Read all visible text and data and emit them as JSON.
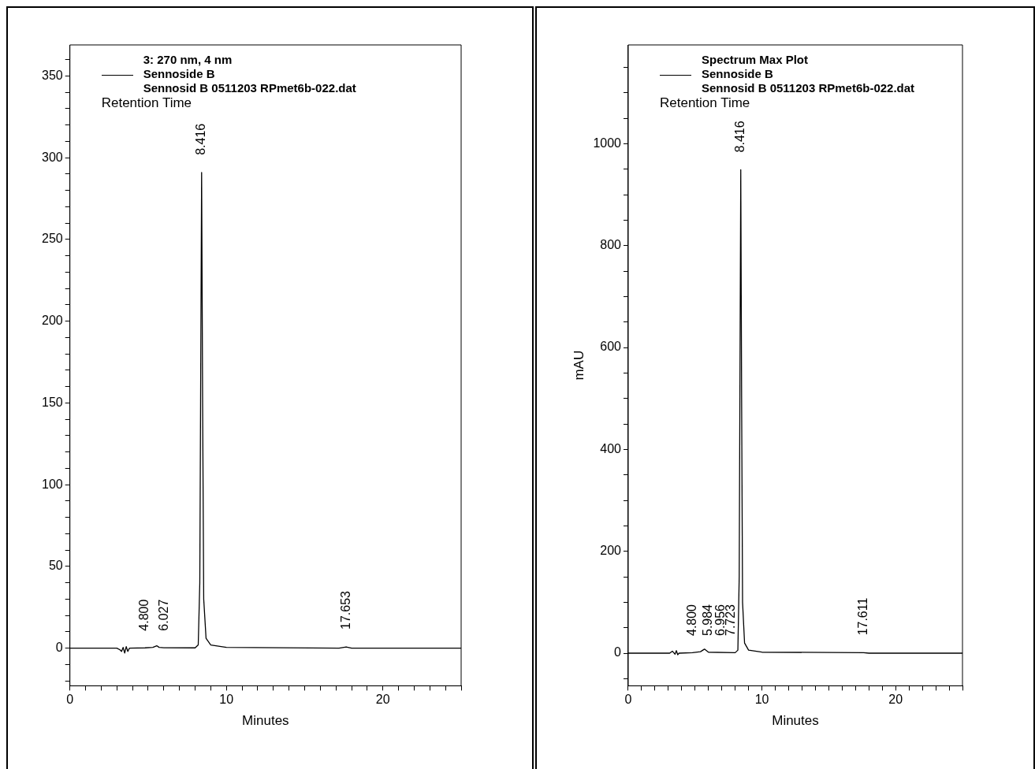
{
  "chart_data": [
    {
      "type": "line",
      "legend_title": "3: 270 nm, 4 nm",
      "xlabel": "Minutes",
      "legend": "top left",
      "grid": false,
      "marker": "none",
      "line_style": "solid",
      "xlim": [
        0,
        25
      ],
      "ylim": [
        -23,
        369
      ],
      "xticks": [
        0,
        {
          "value": 1,
          "label": null
        },
        {
          "value": 2,
          "label": null
        },
        {
          "value": 3,
          "label": null
        },
        {
          "value": 4,
          "label": null
        },
        {
          "value": 5,
          "label": null
        },
        {
          "value": 6,
          "label": null
        },
        {
          "value": 7,
          "label": null
        },
        {
          "value": 8,
          "label": null
        },
        {
          "value": 9,
          "label": null
        },
        10,
        {
          "value": 11,
          "label": null
        },
        {
          "value": 12,
          "label": null
        },
        {
          "value": 13,
          "label": null
        },
        {
          "value": 14,
          "label": null
        },
        {
          "value": 15,
          "label": null
        },
        {
          "value": 16,
          "label": null
        },
        {
          "value": 17,
          "label": null
        },
        {
          "value": 18,
          "label": null
        },
        {
          "value": 19,
          "label": null
        },
        20,
        {
          "value": 21,
          "label": null
        },
        {
          "value": 22,
          "label": null
        },
        {
          "value": 23,
          "label": null
        },
        {
          "value": 24,
          "label": null
        },
        {
          "value": 25,
          "label": null
        }
      ],
      "yticks": [
        {
          "value": -20,
          "label": null
        },
        {
          "value": -10,
          "label": null
        },
        0,
        {
          "value": 10,
          "label": null
        },
        {
          "value": 20,
          "label": null
        },
        {
          "value": 30,
          "label": null
        },
        {
          "value": 40,
          "label": null
        },
        50,
        {
          "value": 60,
          "label": null
        },
        {
          "value": 70,
          "label": null
        },
        {
          "value": 80,
          "label": null
        },
        {
          "value": 90,
          "label": null
        },
        100,
        {
          "value": 110,
          "label": null
        },
        {
          "value": 120,
          "label": null
        },
        {
          "value": 130,
          "label": null
        },
        {
          "value": 140,
          "label": null
        },
        150,
        {
          "value": 160,
          "label": null
        },
        {
          "value": 170,
          "label": null
        },
        {
          "value": 180,
          "label": null
        },
        {
          "value": 190,
          "label": null
        },
        200,
        {
          "value": 210,
          "label": null
        },
        {
          "value": 220,
          "label": null
        },
        {
          "value": 230,
          "label": null
        },
        {
          "value": 240,
          "label": null
        },
        250,
        {
          "value": 260,
          "label": null
        },
        {
          "value": 270,
          "label": null
        },
        {
          "value": 280,
          "label": null
        },
        {
          "value": 290,
          "label": null
        },
        300,
        {
          "value": 310,
          "label": null
        },
        {
          "value": 320,
          "label": null
        },
        {
          "value": 330,
          "label": null
        },
        {
          "value": 340,
          "label": null
        },
        350,
        {
          "value": 360,
          "label": null
        }
      ],
      "series": [
        {
          "name": "Sennoside B",
          "color": "#000000",
          "x": [
            0,
            3.0,
            3.2,
            3.3,
            3.4,
            3.5,
            3.6,
            3.7,
            3.8,
            4.8,
            5.3,
            5.55,
            5.7,
            6.0,
            8.0,
            8.2,
            8.3,
            8.35,
            8.416,
            8.48,
            8.55,
            8.7,
            9.0,
            10,
            17.2,
            17.653,
            18,
            25
          ],
          "values": [
            0,
            0,
            -1,
            -2,
            0.5,
            -3,
            1,
            -2,
            0,
            0.2,
            0.5,
            1.5,
            0.5,
            0.3,
            0.2,
            2,
            40,
            150,
            291,
            150,
            30,
            6,
            2,
            0.5,
            0,
            0.8,
            0,
            0
          ]
        }
      ],
      "annotations": [
        "Sennosid B 0511203 RPmet6b-022.dat",
        "Retention Time",
        {
          "text": "4.800",
          "x": 4.8,
          "y": 0
        },
        {
          "text": "6.027",
          "x": 6.027,
          "y": 0
        },
        {
          "text": "8.416",
          "x": 8.416,
          "y": 291
        },
        {
          "text": "17.653",
          "x": 17.653,
          "y": 0.8
        }
      ]
    },
    {
      "type": "line",
      "legend_title": "Spectrum Max Plot",
      "xlabel": "Minutes",
      "ylabel": "mAU",
      "legend": "top left",
      "grid": false,
      "marker": "none",
      "line_style": "solid",
      "xlim": [
        0,
        25
      ],
      "ylim": [
        -64,
        1194
      ],
      "xticks": [
        0,
        {
          "value": 1,
          "label": null
        },
        {
          "value": 2,
          "label": null
        },
        {
          "value": 3,
          "label": null
        },
        {
          "value": 4,
          "label": null
        },
        {
          "value": 5,
          "label": null
        },
        {
          "value": 6,
          "label": null
        },
        {
          "value": 7,
          "label": null
        },
        {
          "value": 8,
          "label": null
        },
        {
          "value": 9,
          "label": null
        },
        10,
        {
          "value": 11,
          "label": null
        },
        {
          "value": 12,
          "label": null
        },
        {
          "value": 13,
          "label": null
        },
        {
          "value": 14,
          "label": null
        },
        {
          "value": 15,
          "label": null
        },
        {
          "value": 16,
          "label": null
        },
        {
          "value": 17,
          "label": null
        },
        {
          "value": 18,
          "label": null
        },
        {
          "value": 19,
          "label": null
        },
        20,
        {
          "value": 21,
          "label": null
        },
        {
          "value": 22,
          "label": null
        },
        {
          "value": 23,
          "label": null
        },
        {
          "value": 24,
          "label": null
        },
        {
          "value": 25,
          "label": null
        }
      ],
      "yticks": [
        {
          "value": -50,
          "label": null
        },
        0,
        {
          "value": 50,
          "label": null
        },
        {
          "value": 100,
          "label": null
        },
        {
          "value": 150,
          "label": null
        },
        200,
        {
          "value": 250,
          "label": null
        },
        {
          "value": 300,
          "label": null
        },
        {
          "value": 350,
          "label": null
        },
        400,
        {
          "value": 450,
          "label": null
        },
        {
          "value": 500,
          "label": null
        },
        {
          "value": 550,
          "label": null
        },
        600,
        {
          "value": 650,
          "label": null
        },
        {
          "value": 700,
          "label": null
        },
        {
          "value": 750,
          "label": null
        },
        800,
        {
          "value": 850,
          "label": null
        },
        {
          "value": 900,
          "label": null
        },
        {
          "value": 950,
          "label": null
        },
        1000,
        {
          "value": 1050,
          "label": null
        },
        {
          "value": 1100,
          "label": null
        },
        {
          "value": 1150,
          "label": null
        }
      ],
      "series": [
        {
          "name": "Sennoside B",
          "color": "#000000",
          "x": [
            0,
            3.1,
            3.3,
            3.5,
            3.6,
            3.7,
            3.8,
            4.8,
            5.4,
            5.7,
            6.0,
            8.0,
            8.2,
            8.3,
            8.35,
            8.416,
            8.48,
            8.55,
            8.7,
            9.0,
            10,
            17.611,
            18,
            25
          ],
          "values": [
            0,
            0,
            4,
            -2,
            5,
            -3,
            0,
            1,
            3,
            8,
            2,
            1,
            6,
            150,
            500,
            949,
            500,
            100,
            20,
            6,
            2,
            1,
            0,
            0
          ]
        }
      ],
      "annotations": [
        "Sennosid B 0511203 RPmet6b-022.dat",
        "Retention Time",
        {
          "text": "4.800",
          "x": 4.8,
          "y": 0
        },
        {
          "text": "5.984",
          "x": 5.984,
          "y": 0
        },
        {
          "text": "6.956",
          "x": 6.956,
          "y": 0
        },
        {
          "text": "7.723",
          "x": 7.723,
          "y": 0
        },
        {
          "text": "8.416",
          "x": 8.416,
          "y": 949
        },
        {
          "text": "17.611",
          "x": 17.611,
          "y": 1
        }
      ]
    }
  ]
}
